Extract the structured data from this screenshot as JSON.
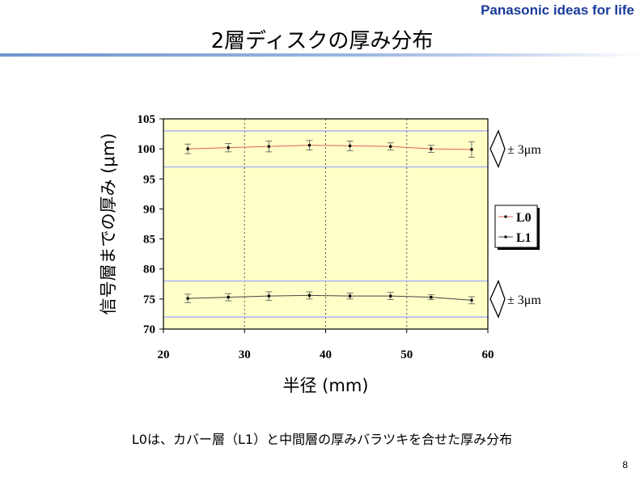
{
  "header": {
    "brand": "Panasonic ideas for life",
    "title": "2層ディスクの厚み分布",
    "page_number": "8"
  },
  "caption": "L0は、カバー層（L1）と中間層の厚みバラツキを合せた厚み分布",
  "colors": {
    "plot_background": "#ffffc8",
    "band_line": "#9aa3ff",
    "l0_line": "#e06060",
    "l1_line": "#444444",
    "marker": "#000000",
    "title_rule": "#6f95cf",
    "brand": "#1a3a9a"
  },
  "chart_data": {
    "type": "line",
    "title": "",
    "xlabel": "半径 (mm)",
    "ylabel": "信号層までの厚み (μm)",
    "xlim": [
      20,
      60
    ],
    "ylim": [
      70,
      105
    ],
    "xticks": [
      20,
      30,
      40,
      50,
      60
    ],
    "yticks": [
      70,
      75,
      80,
      85,
      90,
      95,
      100,
      105
    ],
    "vertical_gridlines": [
      30,
      40,
      50
    ],
    "legend_placement": "right",
    "x": [
      23,
      28,
      33,
      38,
      43,
      48,
      53,
      58
    ],
    "series": [
      {
        "name": "L0",
        "values": [
          100.0,
          100.2,
          100.4,
          100.6,
          100.5,
          100.4,
          100.0,
          99.9
        ],
        "error": [
          0.8,
          0.7,
          0.9,
          0.8,
          0.8,
          0.6,
          0.6,
          1.3
        ]
      },
      {
        "name": "L1",
        "values": [
          75.1,
          75.3,
          75.5,
          75.6,
          75.5,
          75.5,
          75.3,
          74.8
        ],
        "error": [
          0.7,
          0.6,
          0.7,
          0.6,
          0.5,
          0.6,
          0.4,
          0.6
        ]
      }
    ],
    "tolerance_bands": [
      {
        "center": 100,
        "lower": 97,
        "upper": 103,
        "label": "± 3μm"
      },
      {
        "center": 75,
        "lower": 72,
        "upper": 78,
        "label": "± 3μm"
      }
    ]
  }
}
